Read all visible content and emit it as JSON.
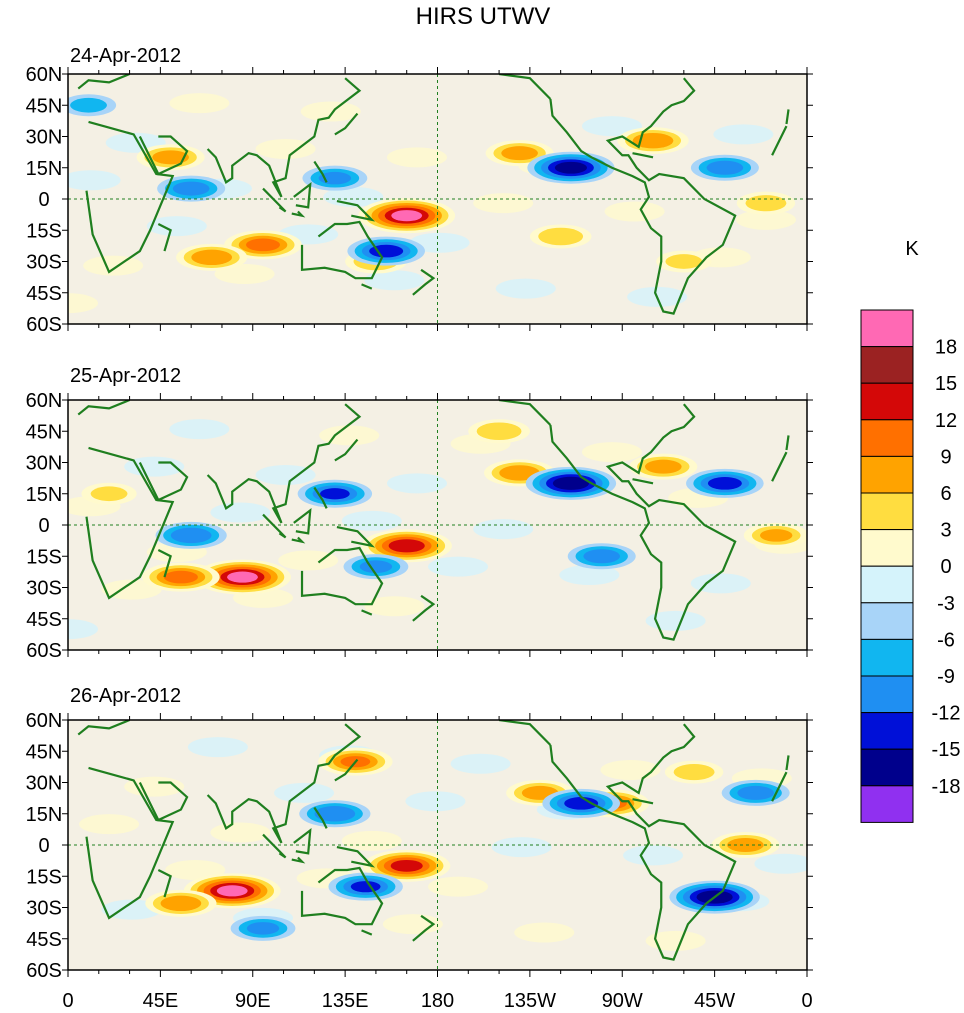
{
  "chart_data": {
    "type": "heatmap",
    "title": "HIRS UTWV",
    "units": "K",
    "panels": [
      {
        "date": "24-Apr-2012",
        "anomalies": [
          {
            "lon": 50,
            "lat": 20,
            "value": 10
          },
          {
            "lon": 95,
            "lat": -22,
            "value": 13
          },
          {
            "lon": 70,
            "lat": -28,
            "value": 11
          },
          {
            "lon": 165,
            "lat": -8,
            "value": 19
          },
          {
            "lon": 150,
            "lat": -30,
            "value": 8
          },
          {
            "lon": -140,
            "lat": 22,
            "value": 10
          },
          {
            "lon": -75,
            "lat": 28,
            "value": 11
          },
          {
            "lon": -120,
            "lat": -18,
            "value": 8
          },
          {
            "lon": -20,
            "lat": -2,
            "value": 7
          },
          {
            "lon": -60,
            "lat": -30,
            "value": 6
          },
          {
            "lon": -115,
            "lat": 15,
            "value": -16
          },
          {
            "lon": 60,
            "lat": 5,
            "value": -10
          },
          {
            "lon": 130,
            "lat": 10,
            "value": -9
          },
          {
            "lon": 155,
            "lat": -25,
            "value": -13
          },
          {
            "lon": -40,
            "lat": 15,
            "value": -10
          },
          {
            "lon": 10,
            "lat": 45,
            "value": -6
          }
        ]
      },
      {
        "date": "25-Apr-2012",
        "anomalies": [
          {
            "lon": 85,
            "lat": -25,
            "value": 19
          },
          {
            "lon": 55,
            "lat": -25,
            "value": 13
          },
          {
            "lon": 165,
            "lat": -10,
            "value": 17
          },
          {
            "lon": -140,
            "lat": 25,
            "value": 11
          },
          {
            "lon": -70,
            "lat": 28,
            "value": 10
          },
          {
            "lon": -15,
            "lat": -5,
            "value": 9
          },
          {
            "lon": -150,
            "lat": 45,
            "value": 8
          },
          {
            "lon": 20,
            "lat": 15,
            "value": 6
          },
          {
            "lon": -115,
            "lat": 20,
            "value": -17
          },
          {
            "lon": 130,
            "lat": 15,
            "value": -12
          },
          {
            "lon": 60,
            "lat": -5,
            "value": -11
          },
          {
            "lon": -40,
            "lat": 20,
            "value": -13
          },
          {
            "lon": 150,
            "lat": -20,
            "value": -9
          },
          {
            "lon": -100,
            "lat": -15,
            "value": -10
          }
        ]
      },
      {
        "date": "26-Apr-2012",
        "anomalies": [
          {
            "lon": 80,
            "lat": -22,
            "value": 19
          },
          {
            "lon": 55,
            "lat": -28,
            "value": 11
          },
          {
            "lon": 165,
            "lat": -10,
            "value": 16
          },
          {
            "lon": -95,
            "lat": 20,
            "value": 12
          },
          {
            "lon": -130,
            "lat": 25,
            "value": 10
          },
          {
            "lon": -30,
            "lat": 0,
            "value": 10
          },
          {
            "lon": 140,
            "lat": 40,
            "value": 12
          },
          {
            "lon": -55,
            "lat": 35,
            "value": 7
          },
          {
            "lon": -45,
            "lat": -25,
            "value": -17
          },
          {
            "lon": -110,
            "lat": 20,
            "value": -13
          },
          {
            "lon": 145,
            "lat": -20,
            "value": -12
          },
          {
            "lon": 130,
            "lat": 15,
            "value": -11
          },
          {
            "lon": -25,
            "lat": 25,
            "value": -10
          },
          {
            "lon": 95,
            "lat": -40,
            "value": -9
          }
        ]
      }
    ],
    "xticks": [
      "0",
      "45E",
      "90E",
      "135E",
      "180",
      "135W",
      "90W",
      "45W",
      "0"
    ],
    "yticks": [
      "60N",
      "45N",
      "30N",
      "15N",
      "0",
      "15S",
      "30S",
      "45S",
      "60S"
    ],
    "lon_range": [
      0,
      360
    ],
    "lat_range": [
      -60,
      60
    ],
    "colorbar": {
      "labels": [
        "18",
        "15",
        "12",
        "9",
        "6",
        "3",
        "0",
        "-3",
        "-6",
        "-9",
        "-12",
        "-15",
        "-18"
      ],
      "colors": [
        "#ff69b4",
        "#9b2222",
        "#d40808",
        "#ff7000",
        "#ffa300",
        "#ffdd40",
        "#fffacd",
        "#d5f3fb",
        "#a8d4f8",
        "#11b6f0",
        "#1f8ff2",
        "#0010d8",
        "#00008c",
        "#9030f0"
      ]
    },
    "land_color": "#1f7f1f",
    "background_color": "#f4f0e4"
  }
}
